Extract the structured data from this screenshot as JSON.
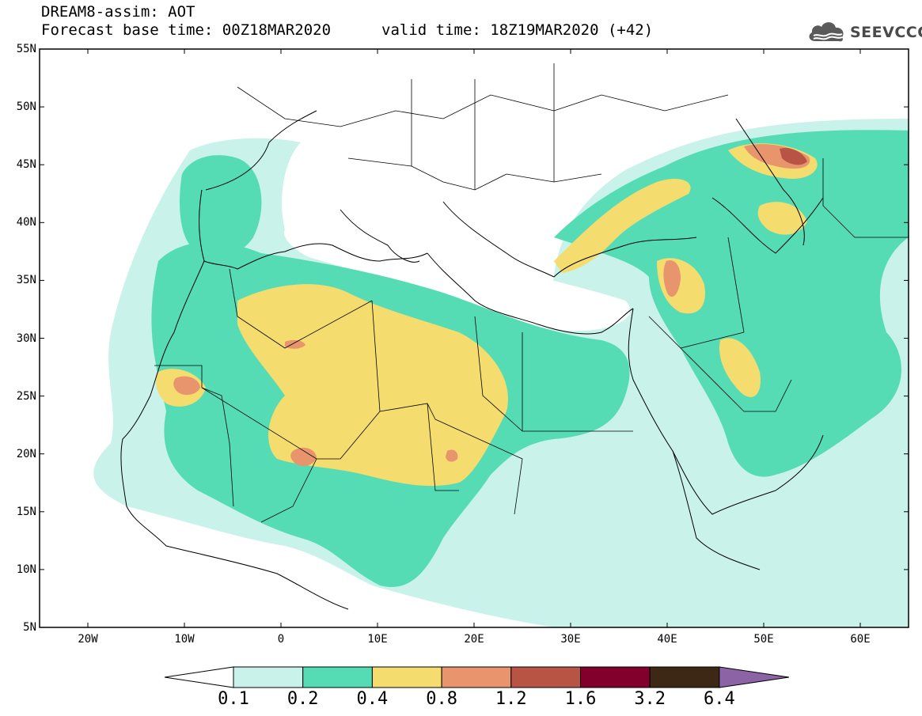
{
  "header": {
    "title": "DREAM8-assim: AOT",
    "base_time": "Forecast base time: 00Z18MAR2020",
    "valid_time": "valid time: 18Z19MAR2020 (+42)"
  },
  "logo": {
    "text": "SEEVCCC",
    "icon": "cloud-icon"
  },
  "map": {
    "lon_range": [
      -25,
      65
    ],
    "lat_range": [
      5,
      55
    ],
    "lat_ticks": [
      "55N",
      "50N",
      "45N",
      "40N",
      "35N",
      "30N",
      "25N",
      "20N",
      "15N",
      "10N",
      "5N"
    ],
    "lon_ticks": [
      "20W",
      "10W",
      "0",
      "10E",
      "20E",
      "30E",
      "40E",
      "50E",
      "60E"
    ],
    "lat_values": [
      55,
      50,
      45,
      40,
      35,
      30,
      25,
      20,
      15,
      10,
      5
    ],
    "lon_values": [
      -20,
      -10,
      0,
      10,
      20,
      30,
      40,
      50,
      60
    ]
  },
  "colorbar": {
    "labels": [
      "0.1",
      "0.2",
      "0.4",
      "0.8",
      "1.2",
      "1.6",
      "3.2",
      "6.4"
    ],
    "colors": [
      "#c8f2ea",
      "#56dcb4",
      "#f4dc6e",
      "#e8956e",
      "#b85444",
      "#82002c",
      "#3c2814"
    ],
    "under_color": "#ffffff",
    "over_color": "#8c64a6"
  }
}
